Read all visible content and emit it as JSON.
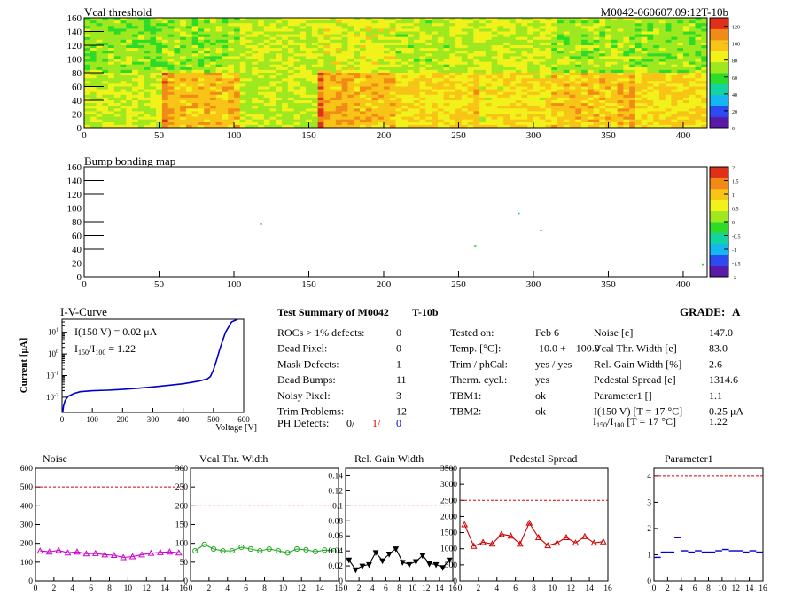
{
  "header": {
    "module_id": "M0042-060607.09:12T-10b"
  },
  "chart_data": [
    {
      "type": "heatmap",
      "title": "Vcal threshold",
      "xlim": [
        0,
        416
      ],
      "ylim": [
        0,
        160
      ],
      "xticks": [
        0,
        50,
        100,
        150,
        200,
        250,
        300,
        350,
        400
      ],
      "yticks": [
        0,
        20,
        40,
        60,
        80,
        100,
        120,
        140,
        160
      ],
      "zlim": [
        0,
        130
      ],
      "zticks": [
        0,
        20,
        40,
        60,
        80,
        100,
        120
      ],
      "roc_cols_top": 8,
      "roc_cols_bottom": 8,
      "roc_mean_top": [
        70,
        72,
        78,
        82,
        75,
        80,
        72,
        70
      ],
      "roc_mean_bottom": [
        78,
        98,
        76,
        100,
        90,
        88,
        96,
        92
      ],
      "palette": [
        "#5a1aa8",
        "#2b4af0",
        "#14b8f0",
        "#13d4a0",
        "#2ddc28",
        "#9ee820",
        "#f2f21b",
        "#f7c417",
        "#f28a17",
        "#e0301a"
      ]
    },
    {
      "type": "scatter",
      "title": "Bump bonding map",
      "xlim": [
        0,
        416
      ],
      "ylim": [
        0,
        160
      ],
      "xticks": [
        0,
        50,
        100,
        150,
        200,
        250,
        300,
        350,
        400
      ],
      "yticks": [
        0,
        20,
        40,
        60,
        80,
        100,
        120,
        140,
        160
      ],
      "zlim": [
        -2,
        2
      ],
      "zticks": [
        -2,
        -1.5,
        -1,
        -0.5,
        0,
        0.5,
        1,
        1.5,
        2
      ],
      "points": [
        {
          "x": 118,
          "y": 76,
          "color": "#2ddc28"
        },
        {
          "x": 261,
          "y": 45,
          "color": "#2ddc28"
        },
        {
          "x": 290,
          "y": 92,
          "color": "#14b8f0"
        },
        {
          "x": 305,
          "y": 67,
          "color": "#2ddc28"
        },
        {
          "x": 413,
          "y": 17,
          "color": "#2ddc28"
        }
      ]
    },
    {
      "type": "line",
      "title": "I-V-Curve",
      "xlabel": "Voltage [V]",
      "ylabel": "Current [μA]",
      "xlim": [
        0,
        600
      ],
      "xticks": [
        0,
        100,
        200,
        300,
        400,
        500,
        600
      ],
      "ylim_log": [
        -2.7,
        1.6
      ],
      "yticks": [
        -2,
        -1,
        0,
        1
      ],
      "iv_label": "I(150 V) = 0.02 μA",
      "ratio_label": "1.22",
      "x": [
        2,
        5,
        10,
        20,
        40,
        60,
        100,
        150,
        200,
        250,
        300,
        350,
        400,
        450,
        480,
        490,
        500,
        510,
        520,
        530,
        540,
        560,
        580
      ],
      "y": [
        0.002,
        0.004,
        0.007,
        0.011,
        0.015,
        0.018,
        0.02,
        0.021,
        0.023,
        0.026,
        0.03,
        0.035,
        0.042,
        0.055,
        0.07,
        0.09,
        0.18,
        0.5,
        1.5,
        4,
        10,
        30,
        50
      ]
    },
    {
      "type": "line",
      "title": "Noise",
      "xlim": [
        0,
        16
      ],
      "ylim": [
        0,
        600
      ],
      "xticks": [
        0,
        2,
        4,
        6,
        8,
        10,
        12,
        14,
        16
      ],
      "yticks": [
        0,
        100,
        200,
        300,
        400,
        500,
        600
      ],
      "limit": 500,
      "color": "#cc00cc",
      "marker": "triangle",
      "x": [
        0.5,
        1.5,
        2.5,
        3.5,
        4.5,
        5.5,
        6.5,
        7.5,
        8.5,
        9.5,
        10.5,
        11.5,
        12.5,
        13.5,
        14.5,
        15.5
      ],
      "y": [
        160,
        155,
        163,
        150,
        155,
        145,
        147,
        140,
        137,
        125,
        130,
        140,
        148,
        152,
        155,
        150
      ]
    },
    {
      "type": "line",
      "title": "Vcal Thr. Width",
      "xlim": [
        0,
        16
      ],
      "ylim": [
        0,
        300
      ],
      "xticks": [
        0,
        2,
        4,
        6,
        8,
        10,
        12,
        14,
        16
      ],
      "yticks": [
        0,
        50,
        100,
        150,
        200,
        250,
        300
      ],
      "limit": 200,
      "color": "#22aa22",
      "marker": "circle",
      "x": [
        0.5,
        1.5,
        2.5,
        3.5,
        4.5,
        5.5,
        6.5,
        7.5,
        8.5,
        9.5,
        10.5,
        11.5,
        12.5,
        13.5,
        14.5,
        15.5
      ],
      "y": [
        80,
        97,
        85,
        80,
        80,
        90,
        85,
        80,
        85,
        80,
        75,
        85,
        83,
        78,
        82,
        80
      ]
    },
    {
      "type": "line",
      "title": "Rel. Gain Width",
      "xlim": [
        0,
        16
      ],
      "ylim": [
        0,
        0.15
      ],
      "xticks": [
        0,
        2,
        4,
        6,
        8,
        10,
        12,
        14,
        16
      ],
      "yticks": [
        "0",
        "0.02",
        "0.04",
        "0.06",
        "0.08",
        "0.1",
        "0.12",
        "0.14"
      ],
      "limit": 0.1,
      "color": "#000000",
      "marker": "triangle-down",
      "x": [
        0.5,
        1.5,
        2.5,
        3.5,
        4.5,
        5.5,
        6.5,
        7.5,
        8.5,
        9.5,
        10.5,
        11.5,
        12.5,
        13.5,
        14.5,
        15.5
      ],
      "y": [
        0.028,
        0.015,
        0.02,
        0.022,
        0.038,
        0.027,
        0.036,
        0.043,
        0.025,
        0.022,
        0.026,
        0.034,
        0.023,
        0.022,
        0.018,
        0.028
      ]
    },
    {
      "type": "line",
      "title": "Pedestal Spread",
      "xlim": [
        0,
        16
      ],
      "ylim": [
        0,
        3500
      ],
      "xticks": [
        0,
        2,
        4,
        6,
        8,
        10,
        12,
        14,
        16
      ],
      "yticks": [
        0,
        500,
        1000,
        1500,
        2000,
        2500,
        3000,
        3500
      ],
      "limit": 2500,
      "color": "#cc0000",
      "marker": "triangle",
      "x": [
        0.5,
        1.5,
        2.5,
        3.5,
        4.5,
        5.5,
        6.5,
        7.5,
        8.5,
        9.5,
        10.5,
        11.5,
        12.5,
        13.5,
        14.5,
        15.5
      ],
      "y": [
        1750,
        1080,
        1200,
        1150,
        1450,
        1400,
        1150,
        1800,
        1350,
        1100,
        1180,
        1350,
        1180,
        1380,
        1180,
        1220
      ]
    },
    {
      "type": "scatter",
      "title": "Parameter1",
      "xlim": [
        0,
        16
      ],
      "ylim": [
        0,
        4.3
      ],
      "xticks": [
        0,
        2,
        4,
        6,
        8,
        10,
        12,
        14,
        16
      ],
      "yticks": [
        0,
        1,
        2,
        3,
        4
      ],
      "limit": 4,
      "color": "#0000cc",
      "marker": "hbar",
      "x": [
        0.5,
        1.5,
        2.5,
        3.5,
        4.5,
        5.5,
        6.5,
        7.5,
        8.5,
        9.5,
        10.5,
        11.5,
        12.5,
        13.5,
        14.5,
        15.5
      ],
      "y": [
        0.9,
        1.1,
        1.1,
        1.65,
        1.15,
        1.1,
        1.15,
        1.1,
        1.1,
        1.15,
        1.2,
        1.15,
        1.15,
        1.1,
        1.15,
        1.1
      ]
    }
  ],
  "summary": {
    "title": "Test Summary of M0042",
    "subtitle": "T-10b",
    "grade_label": "GRADE:",
    "grade_value": "A",
    "col1": [
      {
        "label": "ROCs > 1% defects:",
        "value": "0"
      },
      {
        "label": "Dead Pixel:",
        "value": "0"
      },
      {
        "label": "Mask Defects:",
        "value": "1"
      },
      {
        "label": "Dead Bumps:",
        "value": "11"
      },
      {
        "label": "Noisy Pixel:",
        "value": "3"
      },
      {
        "label": "Trim Problems:",
        "value": "12"
      }
    ],
    "ph_defects": {
      "label": "PH Defects:",
      "v1": "0/",
      "v2": "1/",
      "v3": "0",
      "c1": "#000000",
      "c2": "#dd0000",
      "c3": "#0000cc"
    },
    "col2": [
      {
        "label": "Tested on:",
        "value": "Feb 6"
      },
      {
        "label": "Temp. [°C]:",
        "value": "-10.0 +- -100.0"
      },
      {
        "label": "Trim / phCal:",
        "value": "yes / yes"
      },
      {
        "label": "Therm. cycl.:",
        "value": "yes"
      },
      {
        "label": "TBM1:",
        "value": "ok"
      },
      {
        "label": "TBM2:",
        "value": "ok"
      }
    ],
    "col3": [
      {
        "label": "Noise [e]",
        "value": "147.0"
      },
      {
        "label": "Vcal Thr. Width [e]",
        "value": "83.0"
      },
      {
        "label": "Rel. Gain Width [%]",
        "value": "2.6"
      },
      {
        "label": "Pedestal Spread [e]",
        "value": "1314.6"
      },
      {
        "label": "Parameter1 []",
        "value": "1.1"
      },
      {
        "label": "I(150 V) [T = 17 °C]",
        "value": "0.25 μA"
      }
    ],
    "ratio_row": {
      "suffix": "[T = 17 °C]",
      "value": "1.22"
    }
  }
}
